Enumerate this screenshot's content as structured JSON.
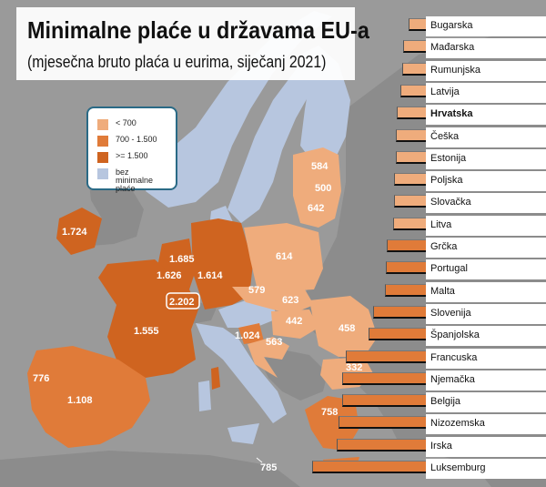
{
  "title": "Minimalne plaće u državama EU-a",
  "subtitle": "(mjesečna bruto plaća u eurima, siječanj 2021)",
  "colors": {
    "sea": "#9a9a9a",
    "non_eu": "#8c8c8c",
    "low": "#efac7c",
    "mid": "#e07b39",
    "high": "#cf6420",
    "none": "#b7c6df"
  },
  "legend": [
    {
      "label": "< 700",
      "color": "#efac7c"
    },
    {
      "label": "700 - 1.500",
      "color": "#e07b39"
    },
    {
      "label": ">= 1.500",
      "color": "#cf6420"
    },
    {
      "label": "bez minimalne plaće",
      "color": "#b7c6df"
    }
  ],
  "map_labels": {
    "ireland": "1.724",
    "netherlands": "1.685",
    "belgium": "1.626",
    "germany": "1.614",
    "luxembourg": "2.202",
    "france": "1.555",
    "portugal": "776",
    "spain": "1.108",
    "estonia": "584",
    "latvia": "500",
    "lithuania": "642",
    "poland": "614",
    "czechia": "579",
    "slovakia": "623",
    "hungary": "442",
    "romania": "458",
    "slovenia": "1.024",
    "croatia": "563",
    "bulgaria": "332",
    "greece": "758",
    "malta": "785"
  },
  "chart_data": {
    "type": "bar",
    "orientation": "horizontal",
    "categories": [
      "Bugarska",
      "Mađarska",
      "Rumunjska",
      "Latvija",
      "Hrvatska",
      "Češka",
      "Estonija",
      "Poljska",
      "Slovačka",
      "Litva",
      "Grčka",
      "Portugal",
      "Malta",
      "Slovenija",
      "Španjolska",
      "Francuska",
      "Njemačka",
      "Belgija",
      "Nizozemska",
      "Irska",
      "Luksemburg"
    ],
    "values": [
      332,
      442,
      458,
      500,
      563,
      579,
      584,
      614,
      623,
      642,
      758,
      776,
      785,
      1024,
      1108,
      1555,
      1614,
      1626,
      1685,
      1724,
      2202
    ],
    "highlight": "Hrvatska",
    "xlim": [
      0,
      2202
    ]
  }
}
